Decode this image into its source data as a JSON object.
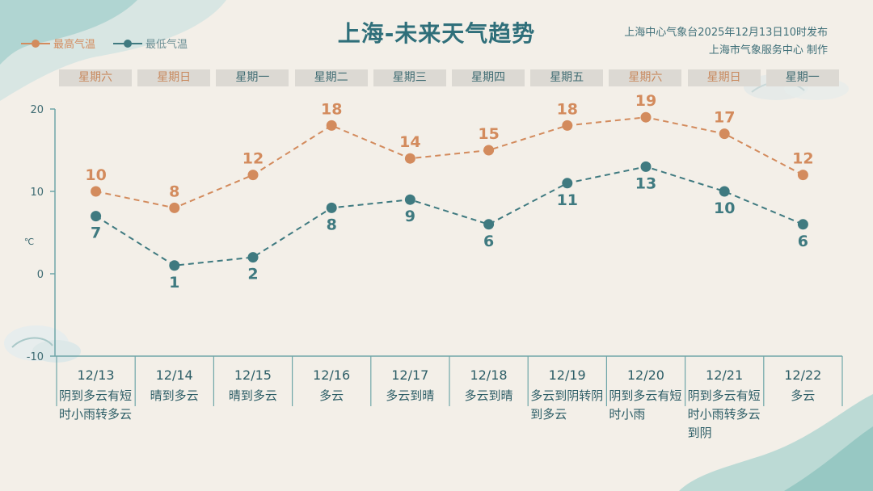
{
  "title": "上海-未来天气趋势",
  "issuer": {
    "line1": "上海中心气象台2025年12月13日10时发布",
    "line2": "上海市气象服务中心  制作"
  },
  "legend": {
    "high": "最高气温",
    "low": "最低气温"
  },
  "weekdays": [
    "星期六",
    "星期日",
    "星期一",
    "星期二",
    "星期三",
    "星期四",
    "星期五",
    "星期六",
    "星期日",
    "星期一"
  ],
  "dates": [
    "12/13",
    "12/14",
    "12/15",
    "12/16",
    "12/17",
    "12/18",
    "12/19",
    "12/20",
    "12/21",
    "12/22"
  ],
  "weather": [
    "阴到多云有短时小雨转多云",
    "晴到多云",
    "晴到多云",
    "多云",
    "多云到晴",
    "多云到晴",
    "多云到阴转阴到多云",
    "阴到多云有短时小雨",
    "阴到多云有短时小雨转多云到阴",
    "多云"
  ],
  "colors": {
    "high": "#d38b5d",
    "low": "#3f7a80",
    "axis": "#6fa6a8",
    "weekend_text": "#c8895e",
    "weekday_text": "#3e6b72"
  },
  "chart_data": {
    "type": "line",
    "categories": [
      "12/13",
      "12/14",
      "12/15",
      "12/16",
      "12/17",
      "12/18",
      "12/19",
      "12/20",
      "12/21",
      "12/22"
    ],
    "series": [
      {
        "name": "最高气温",
        "values": [
          10,
          8,
          12,
          18,
          14,
          15,
          18,
          19,
          17,
          12
        ]
      },
      {
        "name": "最低气温",
        "values": [
          7,
          1,
          2,
          8,
          9,
          6,
          11,
          13,
          10,
          6
        ]
      }
    ],
    "ylabel": "℃",
    "ylim": [
      -10,
      20
    ],
    "yticks": [
      -10,
      0,
      10,
      20
    ]
  }
}
